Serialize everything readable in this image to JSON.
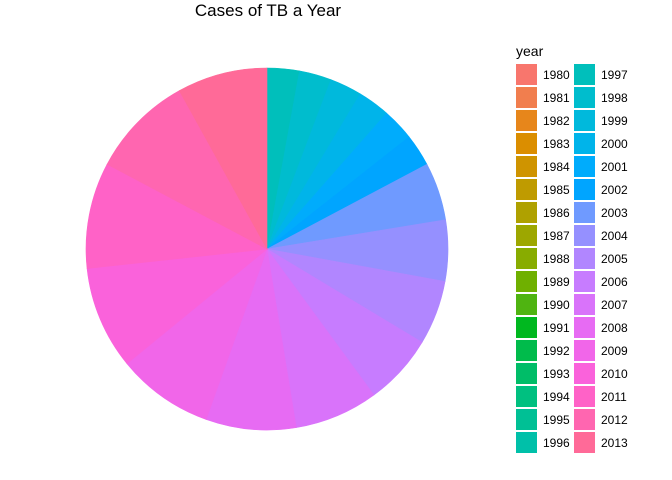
{
  "chart_data": {
    "type": "pie",
    "title": "Cases of TB a Year",
    "legend_title": "year",
    "legend_placement": "right",
    "grid": false,
    "categories": [
      "1980",
      "1981",
      "1982",
      "1983",
      "1984",
      "1985",
      "1986",
      "1987",
      "1988",
      "1989",
      "1990",
      "1991",
      "1992",
      "1993",
      "1994",
      "1995",
      "1996",
      "1997",
      "1998",
      "1999",
      "2000",
      "2001",
      "2002",
      "2003",
      "2004",
      "2005",
      "2006",
      "2007",
      "2008",
      "2009",
      "2010",
      "2011",
      "2012",
      "2013"
    ],
    "colors": [
      "#F8766D",
      "#F17E4E",
      "#E7861B",
      "#DB8E00",
      "#CF9400",
      "#BF9B00",
      "#AFA100",
      "#9DA700",
      "#88AC00",
      "#6FB000",
      "#4FB411",
      "#00B81F",
      "#00BB4B",
      "#00BD68",
      "#00C080",
      "#00C095",
      "#00C0A9",
      "#00BFBB",
      "#00BDCD",
      "#00B9DC",
      "#00B4EA",
      "#00ACFC",
      "#00A5FF",
      "#6F9AFF",
      "#9590FF",
      "#B186FF",
      "#C77CFF",
      "#D973FA",
      "#E76BF3",
      "#F166E9",
      "#FA62DB",
      "#FF62C7",
      "#FF66B0",
      "#FF6A98"
    ],
    "values": [
      0,
      0,
      0,
      0,
      0,
      0,
      0,
      0,
      0,
      0,
      0,
      0,
      0,
      0,
      0,
      0,
      0,
      1.0,
      1.0,
      1.0,
      1.0,
      1.0,
      1.0,
      1.8,
      1.9,
      2.0,
      2.2,
      2.6,
      2.8,
      3.0,
      3.2,
      3.3,
      3.2,
      2.8
    ]
  }
}
